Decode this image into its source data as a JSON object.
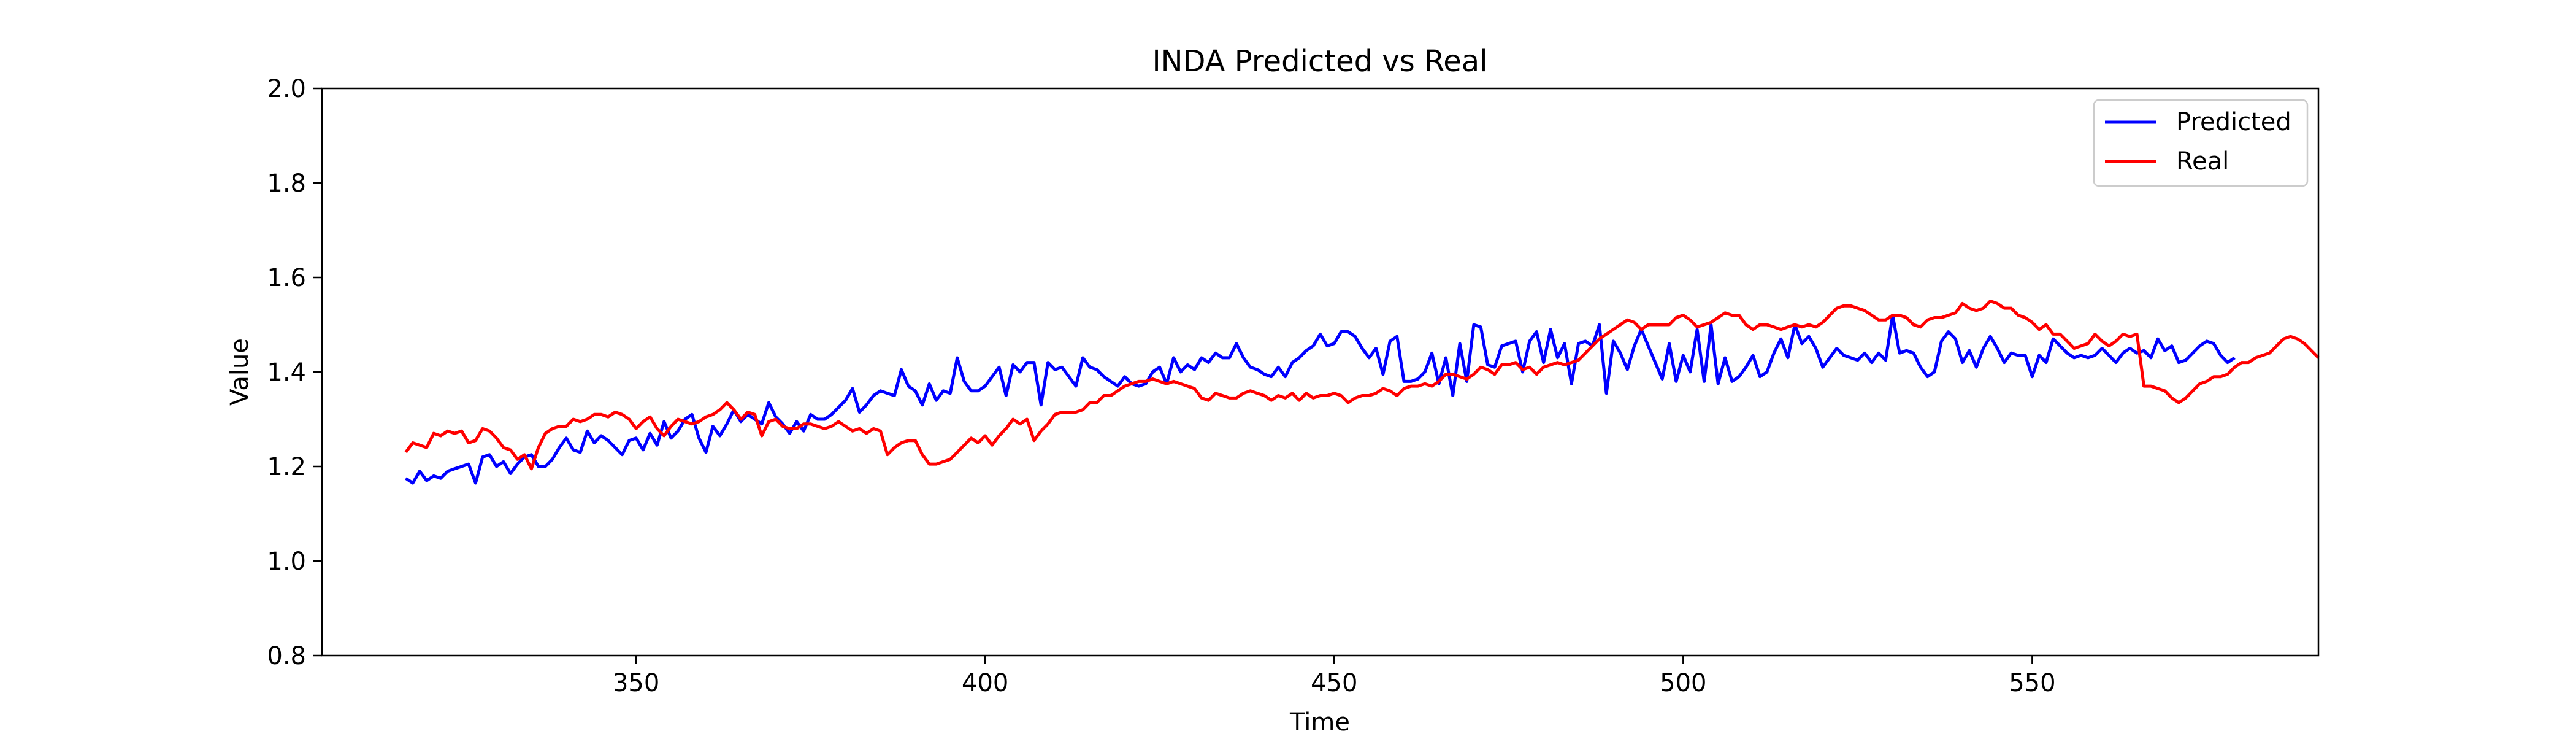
{
  "chart_data": {
    "type": "line",
    "title": "INDA Predicted vs Real",
    "xlabel": "Time",
    "ylabel": "Value",
    "xlim": [
      305,
      591
    ],
    "ylim": [
      0.8,
      2.0
    ],
    "xticks": [
      350,
      400,
      450,
      500,
      550
    ],
    "yticks": [
      0.8,
      1.0,
      1.2,
      1.4,
      1.6,
      1.8,
      2.0
    ],
    "xtick_labels": [
      "350",
      "400",
      "450",
      "500",
      "550"
    ],
    "ytick_labels": [
      "0.8",
      "1.0",
      "1.2",
      "1.4",
      "1.6",
      "1.8",
      "2.0"
    ],
    "legend_placement": "top-right",
    "grid": false,
    "x_start": 317,
    "x_step": 1,
    "series": [
      {
        "name": "Predicted",
        "color": "#0000ff",
        "values": [
          1.175,
          1.165,
          1.19,
          1.17,
          1.18,
          1.175,
          1.19,
          1.195,
          1.2,
          1.205,
          1.165,
          1.22,
          1.225,
          1.2,
          1.21,
          1.185,
          1.205,
          1.22,
          1.225,
          1.2,
          1.2,
          1.215,
          1.24,
          1.26,
          1.235,
          1.23,
          1.275,
          1.25,
          1.265,
          1.255,
          1.24,
          1.225,
          1.255,
          1.26,
          1.235,
          1.27,
          1.245,
          1.295,
          1.26,
          1.275,
          1.3,
          1.31,
          1.26,
          1.23,
          1.285,
          1.265,
          1.29,
          1.32,
          1.295,
          1.31,
          1.3,
          1.29,
          1.335,
          1.305,
          1.29,
          1.27,
          1.295,
          1.275,
          1.31,
          1.3,
          1.3,
          1.31,
          1.325,
          1.34,
          1.365,
          1.315,
          1.33,
          1.35,
          1.36,
          1.355,
          1.35,
          1.405,
          1.37,
          1.36,
          1.33,
          1.375,
          1.34,
          1.36,
          1.355,
          1.43,
          1.38,
          1.36,
          1.36,
          1.37,
          1.39,
          1.41,
          1.35,
          1.415,
          1.4,
          1.42,
          1.42,
          1.33,
          1.42,
          1.405,
          1.41,
          1.39,
          1.37,
          1.43,
          1.41,
          1.405,
          1.39,
          1.38,
          1.37,
          1.39,
          1.375,
          1.37,
          1.375,
          1.4,
          1.41,
          1.375,
          1.43,
          1.4,
          1.415,
          1.405,
          1.43,
          1.42,
          1.44,
          1.43,
          1.43,
          1.46,
          1.43,
          1.41,
          1.405,
          1.395,
          1.39,
          1.41,
          1.39,
          1.42,
          1.43,
          1.445,
          1.455,
          1.48,
          1.455,
          1.46,
          1.485,
          1.485,
          1.475,
          1.45,
          1.43,
          1.45,
          1.395,
          1.465,
          1.475,
          1.38,
          1.38,
          1.385,
          1.4,
          1.44,
          1.375,
          1.43,
          1.35,
          1.46,
          1.38,
          1.5,
          1.495,
          1.415,
          1.41,
          1.455,
          1.46,
          1.465,
          1.4,
          1.465,
          1.485,
          1.42,
          1.49,
          1.43,
          1.46,
          1.375,
          1.46,
          1.465,
          1.455,
          1.5,
          1.355,
          1.465,
          1.44,
          1.405,
          1.455,
          1.49,
          1.455,
          1.42,
          1.385,
          1.46,
          1.38,
          1.435,
          1.4,
          1.49,
          1.38,
          1.5,
          1.375,
          1.43,
          1.38,
          1.39,
          1.41,
          1.435,
          1.39,
          1.4,
          1.44,
          1.47,
          1.43,
          1.5,
          1.46,
          1.475,
          1.45,
          1.41,
          1.43,
          1.45,
          1.435,
          1.43,
          1.425,
          1.44,
          1.42,
          1.44,
          1.425,
          1.52,
          1.44,
          1.445,
          1.44,
          1.41,
          1.39,
          1.4,
          1.465,
          1.485,
          1.47,
          1.42,
          1.445,
          1.41,
          1.45,
          1.475,
          1.45,
          1.42,
          1.44,
          1.435,
          1.435,
          1.39,
          1.435,
          1.42,
          1.47,
          1.455,
          1.44,
          1.43,
          1.435,
          1.43,
          1.435,
          1.45,
          1.435,
          1.42,
          1.44,
          1.45,
          1.44,
          1.445,
          1.43,
          1.47,
          1.445,
          1.455,
          1.42,
          1.425,
          1.44,
          1.455,
          1.465,
          1.46,
          1.435,
          1.42,
          1.43
        ]
      },
      {
        "name": "Real",
        "color": "#ff0000",
        "values": [
          1.23,
          1.25,
          1.245,
          1.24,
          1.27,
          1.265,
          1.275,
          1.27,
          1.275,
          1.25,
          1.255,
          1.28,
          1.275,
          1.26,
          1.24,
          1.235,
          1.215,
          1.225,
          1.195,
          1.24,
          1.27,
          1.28,
          1.285,
          1.285,
          1.3,
          1.295,
          1.3,
          1.31,
          1.31,
          1.305,
          1.315,
          1.31,
          1.3,
          1.28,
          1.295,
          1.305,
          1.28,
          1.265,
          1.285,
          1.3,
          1.295,
          1.29,
          1.295,
          1.305,
          1.31,
          1.32,
          1.335,
          1.32,
          1.3,
          1.315,
          1.31,
          1.265,
          1.295,
          1.3,
          1.285,
          1.28,
          1.28,
          1.29,
          1.29,
          1.285,
          1.28,
          1.285,
          1.295,
          1.285,
          1.275,
          1.28,
          1.27,
          1.28,
          1.275,
          1.225,
          1.24,
          1.25,
          1.255,
          1.255,
          1.225,
          1.205,
          1.205,
          1.21,
          1.215,
          1.23,
          1.245,
          1.26,
          1.25,
          1.265,
          1.245,
          1.265,
          1.28,
          1.3,
          1.29,
          1.3,
          1.255,
          1.275,
          1.29,
          1.31,
          1.315,
          1.315,
          1.315,
          1.32,
          1.335,
          1.335,
          1.35,
          1.35,
          1.36,
          1.37,
          1.375,
          1.38,
          1.38,
          1.385,
          1.38,
          1.375,
          1.38,
          1.375,
          1.37,
          1.365,
          1.345,
          1.34,
          1.355,
          1.35,
          1.345,
          1.345,
          1.355,
          1.36,
          1.355,
          1.35,
          1.34,
          1.35,
          1.345,
          1.355,
          1.34,
          1.355,
          1.345,
          1.35,
          1.35,
          1.355,
          1.35,
          1.335,
          1.345,
          1.35,
          1.35,
          1.355,
          1.365,
          1.36,
          1.35,
          1.365,
          1.37,
          1.37,
          1.375,
          1.37,
          1.38,
          1.395,
          1.395,
          1.39,
          1.385,
          1.395,
          1.41,
          1.405,
          1.395,
          1.415,
          1.415,
          1.42,
          1.405,
          1.41,
          1.395,
          1.41,
          1.415,
          1.42,
          1.415,
          1.42,
          1.425,
          1.44,
          1.455,
          1.47,
          1.48,
          1.49,
          1.5,
          1.51,
          1.505,
          1.49,
          1.5,
          1.5,
          1.5,
          1.5,
          1.515,
          1.52,
          1.51,
          1.495,
          1.5,
          1.505,
          1.515,
          1.525,
          1.52,
          1.52,
          1.5,
          1.49,
          1.5,
          1.5,
          1.495,
          1.49,
          1.495,
          1.5,
          1.495,
          1.5,
          1.495,
          1.505,
          1.52,
          1.535,
          1.54,
          1.54,
          1.535,
          1.53,
          1.52,
          1.51,
          1.51,
          1.52,
          1.52,
          1.515,
          1.5,
          1.495,
          1.51,
          1.515,
          1.515,
          1.52,
          1.525,
          1.545,
          1.535,
          1.53,
          1.535,
          1.55,
          1.545,
          1.535,
          1.535,
          1.52,
          1.515,
          1.505,
          1.49,
          1.5,
          1.48,
          1.48,
          1.465,
          1.45,
          1.455,
          1.46,
          1.48,
          1.465,
          1.455,
          1.465,
          1.48,
          1.475,
          1.48,
          1.37,
          1.37,
          1.365,
          1.36,
          1.345,
          1.335,
          1.345,
          1.36,
          1.375,
          1.38,
          1.39,
          1.39,
          1.395,
          1.41,
          1.42,
          1.42,
          1.43,
          1.435,
          1.44,
          1.455,
          1.47,
          1.475,
          1.47,
          1.46,
          1.445,
          1.43
        ]
      }
    ]
  }
}
